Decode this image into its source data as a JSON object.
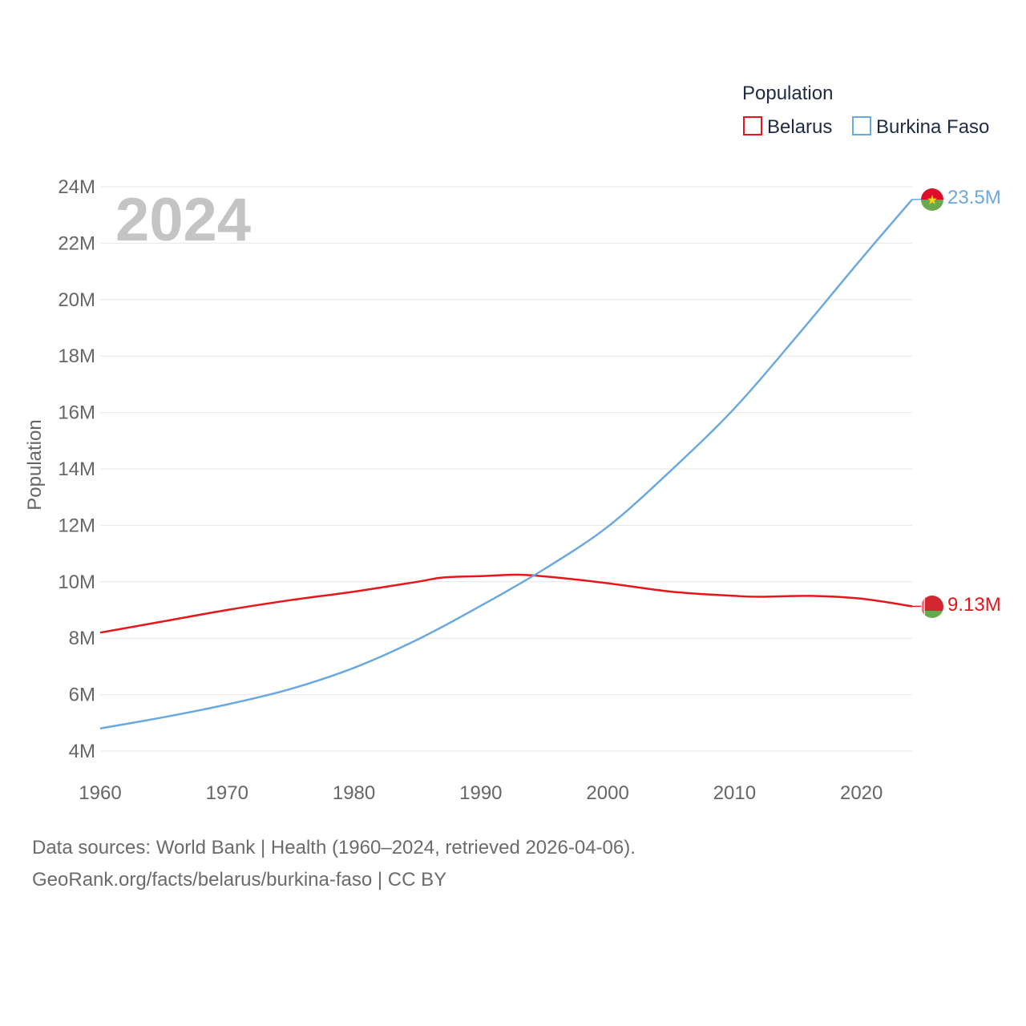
{
  "chart_data": {
    "type": "line",
    "year_label": "2024",
    "legend": {
      "title": "Population",
      "placement": "top-right"
    },
    "ylabel": "Population",
    "xlabel": "",
    "xlim": [
      1960,
      2024
    ],
    "ylim": [
      4000000,
      24000000
    ],
    "x_ticks": [
      "1960",
      "1970",
      "1980",
      "1990",
      "2000",
      "2010",
      "2020"
    ],
    "y_ticks": [
      "4M",
      "6M",
      "8M",
      "10M",
      "12M",
      "14M",
      "16M",
      "18M",
      "20M",
      "22M",
      "24M"
    ],
    "grid": true,
    "series": [
      {
        "name": "Belarus",
        "color": "#e8161b",
        "end_label": "9.13M",
        "flag_icon": "belarus-flag-icon",
        "x": [
          1960,
          1965,
          1970,
          1975,
          1980,
          1985,
          1987,
          1990,
          1993,
          1996,
          2000,
          2005,
          2010,
          2012,
          2016,
          2020,
          2024
        ],
        "values": [
          8200000,
          8600000,
          9000000,
          9350000,
          9650000,
          10000000,
          10150000,
          10200000,
          10250000,
          10150000,
          9950000,
          9650000,
          9500000,
          9470000,
          9500000,
          9400000,
          9130000
        ]
      },
      {
        "name": "Burkina Faso",
        "color": "#6aa9e0",
        "end_label": "23.5M",
        "flag_icon": "burkina-faso-flag-icon",
        "x": [
          1960,
          1965,
          1970,
          1975,
          1980,
          1985,
          1990,
          1995,
          2000,
          2005,
          2010,
          2015,
          2020,
          2024
        ],
        "values": [
          4800000,
          5200000,
          5650000,
          6200000,
          6950000,
          7950000,
          9150000,
          10450000,
          11950000,
          13950000,
          16150000,
          18750000,
          21450000,
          23550000
        ]
      }
    ]
  },
  "footer": {
    "line1": "Data sources: World Bank | Health (1960–2024, retrieved 2026-04-06).",
    "line2": "GeoRank.org/facts/belarus/burkina-faso | CC BY"
  }
}
